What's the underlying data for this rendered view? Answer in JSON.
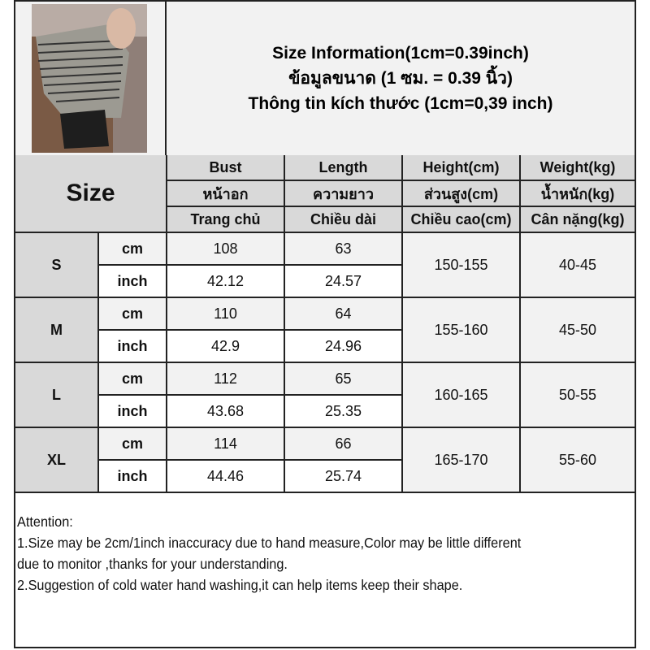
{
  "title": {
    "line1": "Size Information(1cm=0.39inch)",
    "line2": "ข้อมูลขนาด (1 ซม. = 0.39 นิ้ว)",
    "line3": "Thông tin kích thước (1cm=0,39 inch)"
  },
  "photo": {
    "icon": "product-photo-striped-top"
  },
  "table": {
    "size_header": "Size",
    "columns": [
      {
        "en": "Bust",
        "th": "หน้าอก",
        "vi": "Trang chủ"
      },
      {
        "en": "Length",
        "th": "ความยาว",
        "vi": "Chiều dài"
      },
      {
        "en": "Height(cm)",
        "th": "ส่วนสูง(cm)",
        "vi": "Chiều cao(cm)"
      },
      {
        "en": "Weight(kg)",
        "th": "น้ำหนัก(kg)",
        "vi": "Cân nặng(kg)"
      }
    ],
    "units": {
      "cm": "cm",
      "inch": "inch"
    },
    "rows": [
      {
        "size": "S",
        "cm": {
          "bust": "108",
          "length": "63"
        },
        "inch": {
          "bust": "42.12",
          "length": "24.57"
        },
        "height": "150-155",
        "weight": "40-45"
      },
      {
        "size": "M",
        "cm": {
          "bust": "110",
          "length": "64"
        },
        "inch": {
          "bust": "42.9",
          "length": "24.96"
        },
        "height": "155-160",
        "weight": "45-50"
      },
      {
        "size": "L",
        "cm": {
          "bust": "112",
          "length": "65"
        },
        "inch": {
          "bust": "43.68",
          "length": "25.35"
        },
        "height": "160-165",
        "weight": "50-55"
      },
      {
        "size": "XL",
        "cm": {
          "bust": "114",
          "length": "66"
        },
        "inch": {
          "bust": "44.46",
          "length": "25.74"
        },
        "height": "165-170",
        "weight": "55-60"
      }
    ]
  },
  "attention": {
    "heading": "Attention:",
    "line1a": "1.Size may be 2cm/1inch inaccuracy due to hand measure,Color may be little different",
    "line1b": "due to monitor ,thanks for your understanding.",
    "line2": "2.Suggestion of cold water hand washing,it can help items keep their shape."
  },
  "colors": {
    "header_gray": "#d9d9d9",
    "light_gray": "#f2f2f2",
    "border": "#222222"
  }
}
